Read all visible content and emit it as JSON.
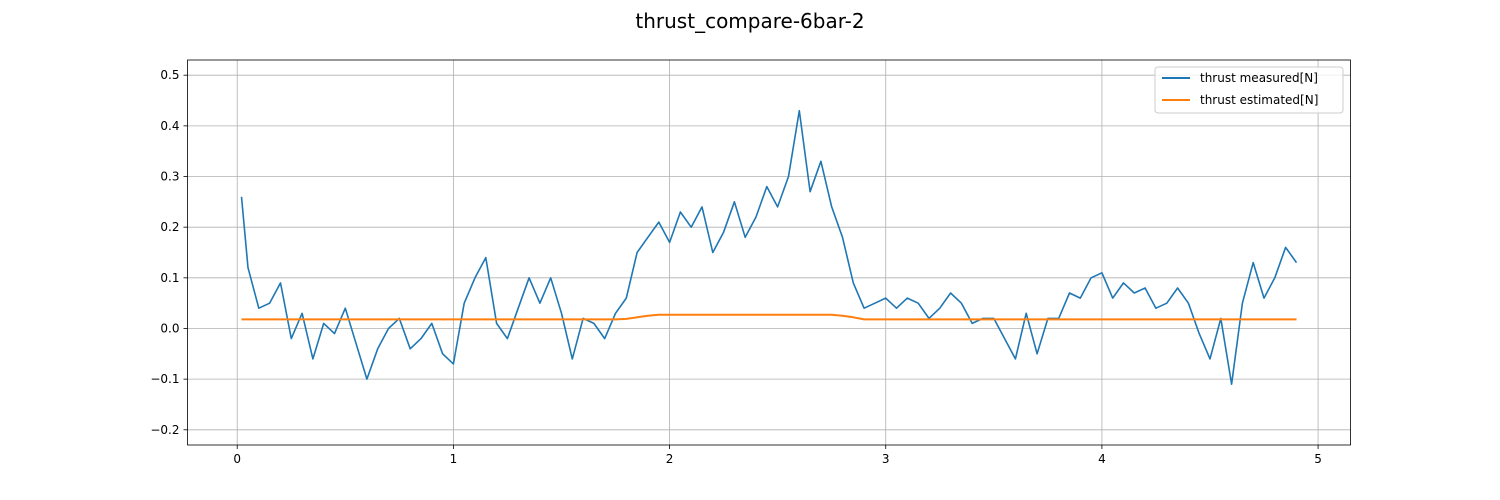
{
  "chart_data": {
    "type": "line",
    "title": "thrust_compare-6bar-2",
    "xlabel": "",
    "ylabel": "",
    "xlim": [
      -0.23,
      5.15
    ],
    "ylim": [
      -0.23,
      0.53
    ],
    "x_ticks": [
      0,
      1,
      2,
      3,
      4,
      5
    ],
    "y_ticks": [
      -0.2,
      -0.1,
      0.0,
      0.1,
      0.2,
      0.3,
      0.4,
      0.5
    ],
    "x_tick_labels": [
      "0",
      "1",
      "2",
      "3",
      "4",
      "5"
    ],
    "y_tick_labels": [
      "−0.2",
      "−0.1",
      "0.0",
      "0.1",
      "0.2",
      "0.3",
      "0.4",
      "0.5"
    ],
    "grid": true,
    "legend_position": "top-right",
    "series": [
      {
        "name": "thrust measured[N]",
        "color": "#1f77b4",
        "x": [
          0.02,
          0.05,
          0.1,
          0.15,
          0.2,
          0.25,
          0.3,
          0.35,
          0.4,
          0.45,
          0.5,
          0.55,
          0.6,
          0.65,
          0.7,
          0.75,
          0.8,
          0.85,
          0.9,
          0.95,
          1.0,
          1.05,
          1.1,
          1.15,
          1.2,
          1.25,
          1.3,
          1.35,
          1.4,
          1.45,
          1.5,
          1.55,
          1.6,
          1.65,
          1.7,
          1.75,
          1.8,
          1.85,
          1.9,
          1.95,
          2.0,
          2.05,
          2.1,
          2.15,
          2.2,
          2.25,
          2.3,
          2.35,
          2.4,
          2.45,
          2.5,
          2.55,
          2.6,
          2.65,
          2.7,
          2.75,
          2.8,
          2.85,
          2.9,
          2.95,
          3.0,
          3.05,
          3.1,
          3.15,
          3.2,
          3.25,
          3.3,
          3.35,
          3.4,
          3.45,
          3.5,
          3.55,
          3.6,
          3.65,
          3.7,
          3.75,
          3.8,
          3.85,
          3.9,
          3.95,
          4.0,
          4.05,
          4.1,
          4.15,
          4.2,
          4.25,
          4.3,
          4.35,
          4.4,
          4.45,
          4.5,
          4.55,
          4.6,
          4.65,
          4.7,
          4.75,
          4.8,
          4.85,
          4.9
        ],
        "y": [
          0.26,
          0.12,
          0.04,
          0.05,
          0.09,
          -0.02,
          0.03,
          -0.06,
          0.01,
          -0.01,
          0.04,
          -0.03,
          -0.1,
          -0.04,
          0.0,
          0.02,
          -0.04,
          -0.02,
          0.01,
          -0.05,
          -0.07,
          0.05,
          0.1,
          0.14,
          0.01,
          -0.02,
          0.04,
          0.1,
          0.05,
          0.1,
          0.03,
          -0.06,
          0.02,
          0.01,
          -0.02,
          0.03,
          0.06,
          0.15,
          0.18,
          0.21,
          0.17,
          0.23,
          0.2,
          0.24,
          0.15,
          0.19,
          0.25,
          0.18,
          0.22,
          0.28,
          0.24,
          0.3,
          0.43,
          0.27,
          0.33,
          0.24,
          0.18,
          0.09,
          0.04,
          0.05,
          0.06,
          0.04,
          0.06,
          0.05,
          0.02,
          0.04,
          0.07,
          0.05,
          0.01,
          0.02,
          0.02,
          -0.02,
          -0.06,
          0.03,
          -0.05,
          0.02,
          0.02,
          0.07,
          0.06,
          0.1,
          0.11,
          0.06,
          0.09,
          0.07,
          0.08,
          0.04,
          0.05,
          0.08,
          0.05,
          -0.01,
          -0.06,
          0.02,
          -0.11,
          0.05,
          0.13,
          0.06,
          0.1,
          0.16,
          0.13
        ]
      },
      {
        "name": "thrust estimated[N]",
        "color": "#ff7f0e",
        "x": [
          0.02,
          0.5,
          1.0,
          1.5,
          1.75,
          1.8,
          1.85,
          1.9,
          1.95,
          2.0,
          2.5,
          2.75,
          2.8,
          2.85,
          2.9,
          3.0,
          3.5,
          4.0,
          4.5,
          4.9
        ],
        "y": [
          0.018,
          0.018,
          0.018,
          0.018,
          0.018,
          0.019,
          0.022,
          0.025,
          0.027,
          0.027,
          0.027,
          0.027,
          0.025,
          0.022,
          0.018,
          0.018,
          0.018,
          0.018,
          0.018,
          0.018
        ]
      }
    ]
  }
}
